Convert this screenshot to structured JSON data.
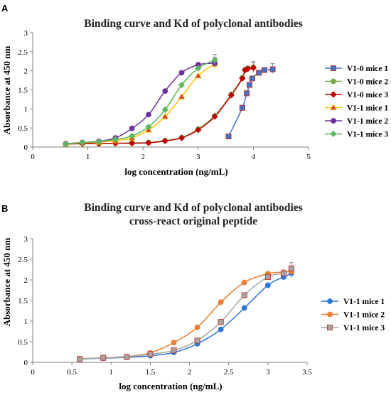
{
  "chart_data": [
    {
      "type": "scatter",
      "panel": "A",
      "title": "Binding curve and Kd of polyclonal antibodies",
      "xlabel": "log concentration (ng/mL)",
      "ylabel": "Absorbance at 450 nm",
      "xlim": [
        0,
        5
      ],
      "ylim": [
        0,
        3
      ],
      "xticks": [
        "0",
        "1",
        "2",
        "3",
        "4",
        "5"
      ],
      "yticks": [
        "0",
        "0.5",
        "1",
        "1.5",
        "2",
        "2.5",
        "3"
      ],
      "legend_position": "right",
      "series": [
        {
          "name": "V1-0 mice 1",
          "color": "#4472c4",
          "marker": "square",
          "x": [
            3.55,
            3.8,
            3.88,
            3.93,
            3.98,
            4.1,
            4.2,
            4.35
          ],
          "y": [
            0.28,
            1.03,
            1.41,
            1.63,
            1.8,
            1.95,
            2.02,
            2.04
          ]
        },
        {
          "name": "V1-0 mice 2",
          "color": "#70ad47",
          "marker": "circle",
          "x": [
            0.6,
            0.9,
            1.2,
            1.5,
            1.8,
            2.1,
            2.4,
            2.7,
            3.0,
            3.3,
            3.6,
            3.8,
            3.85,
            3.9,
            4.0
          ],
          "y": [
            0.08,
            0.09,
            0.09,
            0.1,
            0.11,
            0.12,
            0.17,
            0.25,
            0.47,
            0.82,
            1.38,
            1.82,
            2.03,
            2.07,
            2.09
          ]
        },
        {
          "name": "V1-0 mice 3",
          "color": "#c00000",
          "marker": "diamond",
          "x": [
            0.6,
            0.9,
            1.2,
            1.5,
            1.8,
            2.1,
            2.4,
            2.7,
            3.0,
            3.3,
            3.6,
            3.8,
            3.85,
            3.9,
            4.0
          ],
          "y": [
            0.08,
            0.09,
            0.09,
            0.1,
            0.1,
            0.11,
            0.16,
            0.24,
            0.45,
            0.8,
            1.36,
            1.8,
            2.02,
            2.05,
            2.08
          ]
        },
        {
          "name": "V1-1 mice 1",
          "color": "#ffc000",
          "marker": "triangle",
          "x": [
            0.6,
            0.9,
            1.2,
            1.5,
            1.8,
            2.1,
            2.4,
            2.7,
            3.0,
            3.3
          ],
          "y": [
            0.08,
            0.11,
            0.13,
            0.17,
            0.24,
            0.45,
            0.8,
            1.32,
            1.87,
            2.18
          ]
        },
        {
          "name": "V1-1 mice 2",
          "color": "#7030a0",
          "marker": "circle",
          "x": [
            0.6,
            0.9,
            1.2,
            1.5,
            1.8,
            2.1,
            2.4,
            2.7,
            3.0,
            3.3
          ],
          "y": [
            0.09,
            0.12,
            0.15,
            0.24,
            0.49,
            0.85,
            1.47,
            1.95,
            2.16,
            2.2
          ]
        },
        {
          "name": "V1-1 mice 3",
          "color": "#5cb85c",
          "marker": "diamond",
          "x": [
            0.6,
            0.9,
            1.2,
            1.5,
            1.8,
            2.1,
            2.4,
            2.7,
            3.0,
            3.3
          ],
          "y": [
            0.08,
            0.12,
            0.14,
            0.2,
            0.29,
            0.53,
            0.98,
            1.63,
            2.07,
            2.28
          ]
        }
      ]
    },
    {
      "type": "scatter",
      "panel": "B",
      "title": "Binding curve and Kd of polyclonal antibodies",
      "subtitle": "cross-react original peptide",
      "xlabel": "log concentration (ng/mL)",
      "ylabel": "Absorbance at 450 nm",
      "xlim": [
        0,
        3.5
      ],
      "ylim": [
        0,
        3
      ],
      "xticks": [
        "0",
        "0.5",
        "1",
        "1.5",
        "2",
        "2.5",
        "3",
        "3.5"
      ],
      "yticks": [
        "0",
        "0.5",
        "1",
        "1.5",
        "2",
        "2.5",
        "3"
      ],
      "legend_position": "right",
      "series": [
        {
          "name": "V1-1 mice 1",
          "color": "#2e75d6",
          "marker": "circle",
          "x": [
            0.6,
            0.9,
            1.2,
            1.5,
            1.8,
            2.1,
            2.4,
            2.7,
            3.0,
            3.2,
            3.3
          ],
          "y": [
            0.08,
            0.1,
            0.12,
            0.16,
            0.24,
            0.45,
            0.8,
            1.32,
            1.87,
            2.07,
            2.16
          ]
        },
        {
          "name": "V1-1 mice 2",
          "color": "#ed7d31",
          "marker": "circle",
          "x": [
            0.6,
            0.9,
            1.2,
            1.5,
            1.8,
            2.1,
            2.4,
            2.7,
            3.0,
            3.2,
            3.3
          ],
          "y": [
            0.09,
            0.11,
            0.14,
            0.23,
            0.48,
            0.85,
            1.46,
            1.94,
            2.15,
            2.19,
            2.2
          ]
        },
        {
          "name": "V1-1 mice 3",
          "color": "#a5a5a5",
          "marker": "square",
          "x": [
            0.6,
            0.9,
            1.2,
            1.5,
            1.8,
            2.1,
            2.4,
            2.7,
            3.0,
            3.2,
            3.3
          ],
          "y": [
            0.08,
            0.11,
            0.13,
            0.2,
            0.29,
            0.53,
            0.98,
            1.63,
            2.07,
            2.16,
            2.28
          ]
        }
      ]
    }
  ]
}
